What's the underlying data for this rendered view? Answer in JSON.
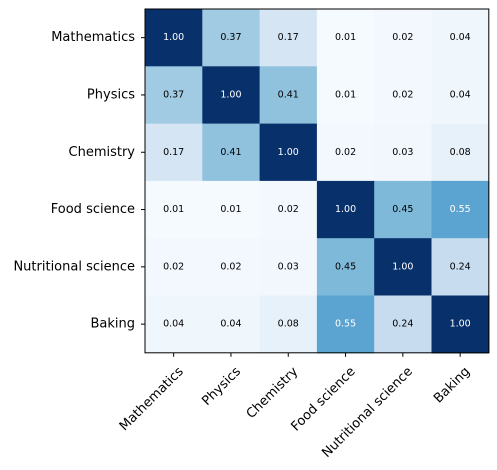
{
  "chart_data": {
    "type": "heatmap",
    "title": "",
    "xlabel": "",
    "ylabel": "",
    "row_labels": [
      "Mathematics",
      "Physics",
      "Chemistry",
      "Food science",
      "Nutritional science",
      "Baking"
    ],
    "col_labels": [
      "Mathematics",
      "Physics",
      "Chemistry",
      "Food science",
      "Nutritional science",
      "Baking"
    ],
    "values": [
      [
        1.0,
        0.37,
        0.17,
        0.01,
        0.02,
        0.04
      ],
      [
        0.37,
        1.0,
        0.41,
        0.01,
        0.02,
        0.04
      ],
      [
        0.17,
        0.41,
        1.0,
        0.02,
        0.03,
        0.08
      ],
      [
        0.01,
        0.01,
        0.02,
        1.0,
        0.45,
        0.55
      ],
      [
        0.02,
        0.02,
        0.03,
        0.45,
        1.0,
        0.24
      ],
      [
        0.04,
        0.04,
        0.08,
        0.55,
        0.24,
        1.0
      ]
    ],
    "cell_labels": [
      [
        "1.00",
        "0.37",
        "0.17",
        "0.01",
        "0.02",
        "0.04"
      ],
      [
        "0.37",
        "1.00",
        "0.41",
        "0.01",
        "0.02",
        "0.04"
      ],
      [
        "0.17",
        "0.41",
        "1.00",
        "0.02",
        "0.03",
        "0.08"
      ],
      [
        "0.01",
        "0.01",
        "0.02",
        "1.00",
        "0.45",
        "0.55"
      ],
      [
        "0.02",
        "0.02",
        "0.03",
        "0.45",
        "1.00",
        "0.24"
      ],
      [
        "0.04",
        "0.04",
        "0.08",
        "0.55",
        "0.24",
        "1.00"
      ]
    ],
    "colormap": "Blues",
    "value_range": [
      0,
      1
    ],
    "grid": false,
    "legend": "none"
  }
}
